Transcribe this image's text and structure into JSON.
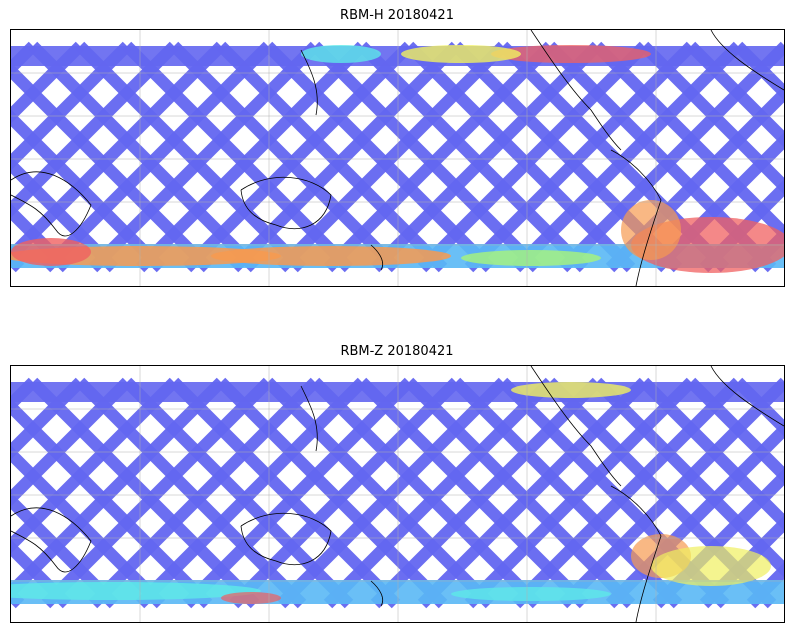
{
  "panels": [
    {
      "title": "RBM-H 20180421",
      "colors": {
        "swath": "#6366f0",
        "mid": "#5ab8f5",
        "cyan": "#5ee8e8",
        "green": "#a8f57a",
        "yellow": "#f0f060",
        "orange": "#f79a50",
        "red": "#f06060"
      },
      "hot_zones": [
        "south-band",
        "north-east",
        "south-east"
      ]
    },
    {
      "title": "RBM-Z 20180421",
      "colors": {
        "swath": "#6366f0",
        "mid": "#5ab8f5",
        "cyan": "#5ee8e8",
        "green": "#a8f57a",
        "yellow": "#f0f060",
        "orange": "#f79a50",
        "red": "#f06060"
      },
      "hot_zones": [
        "south-band-cool",
        "south-east-mild"
      ]
    }
  ]
}
